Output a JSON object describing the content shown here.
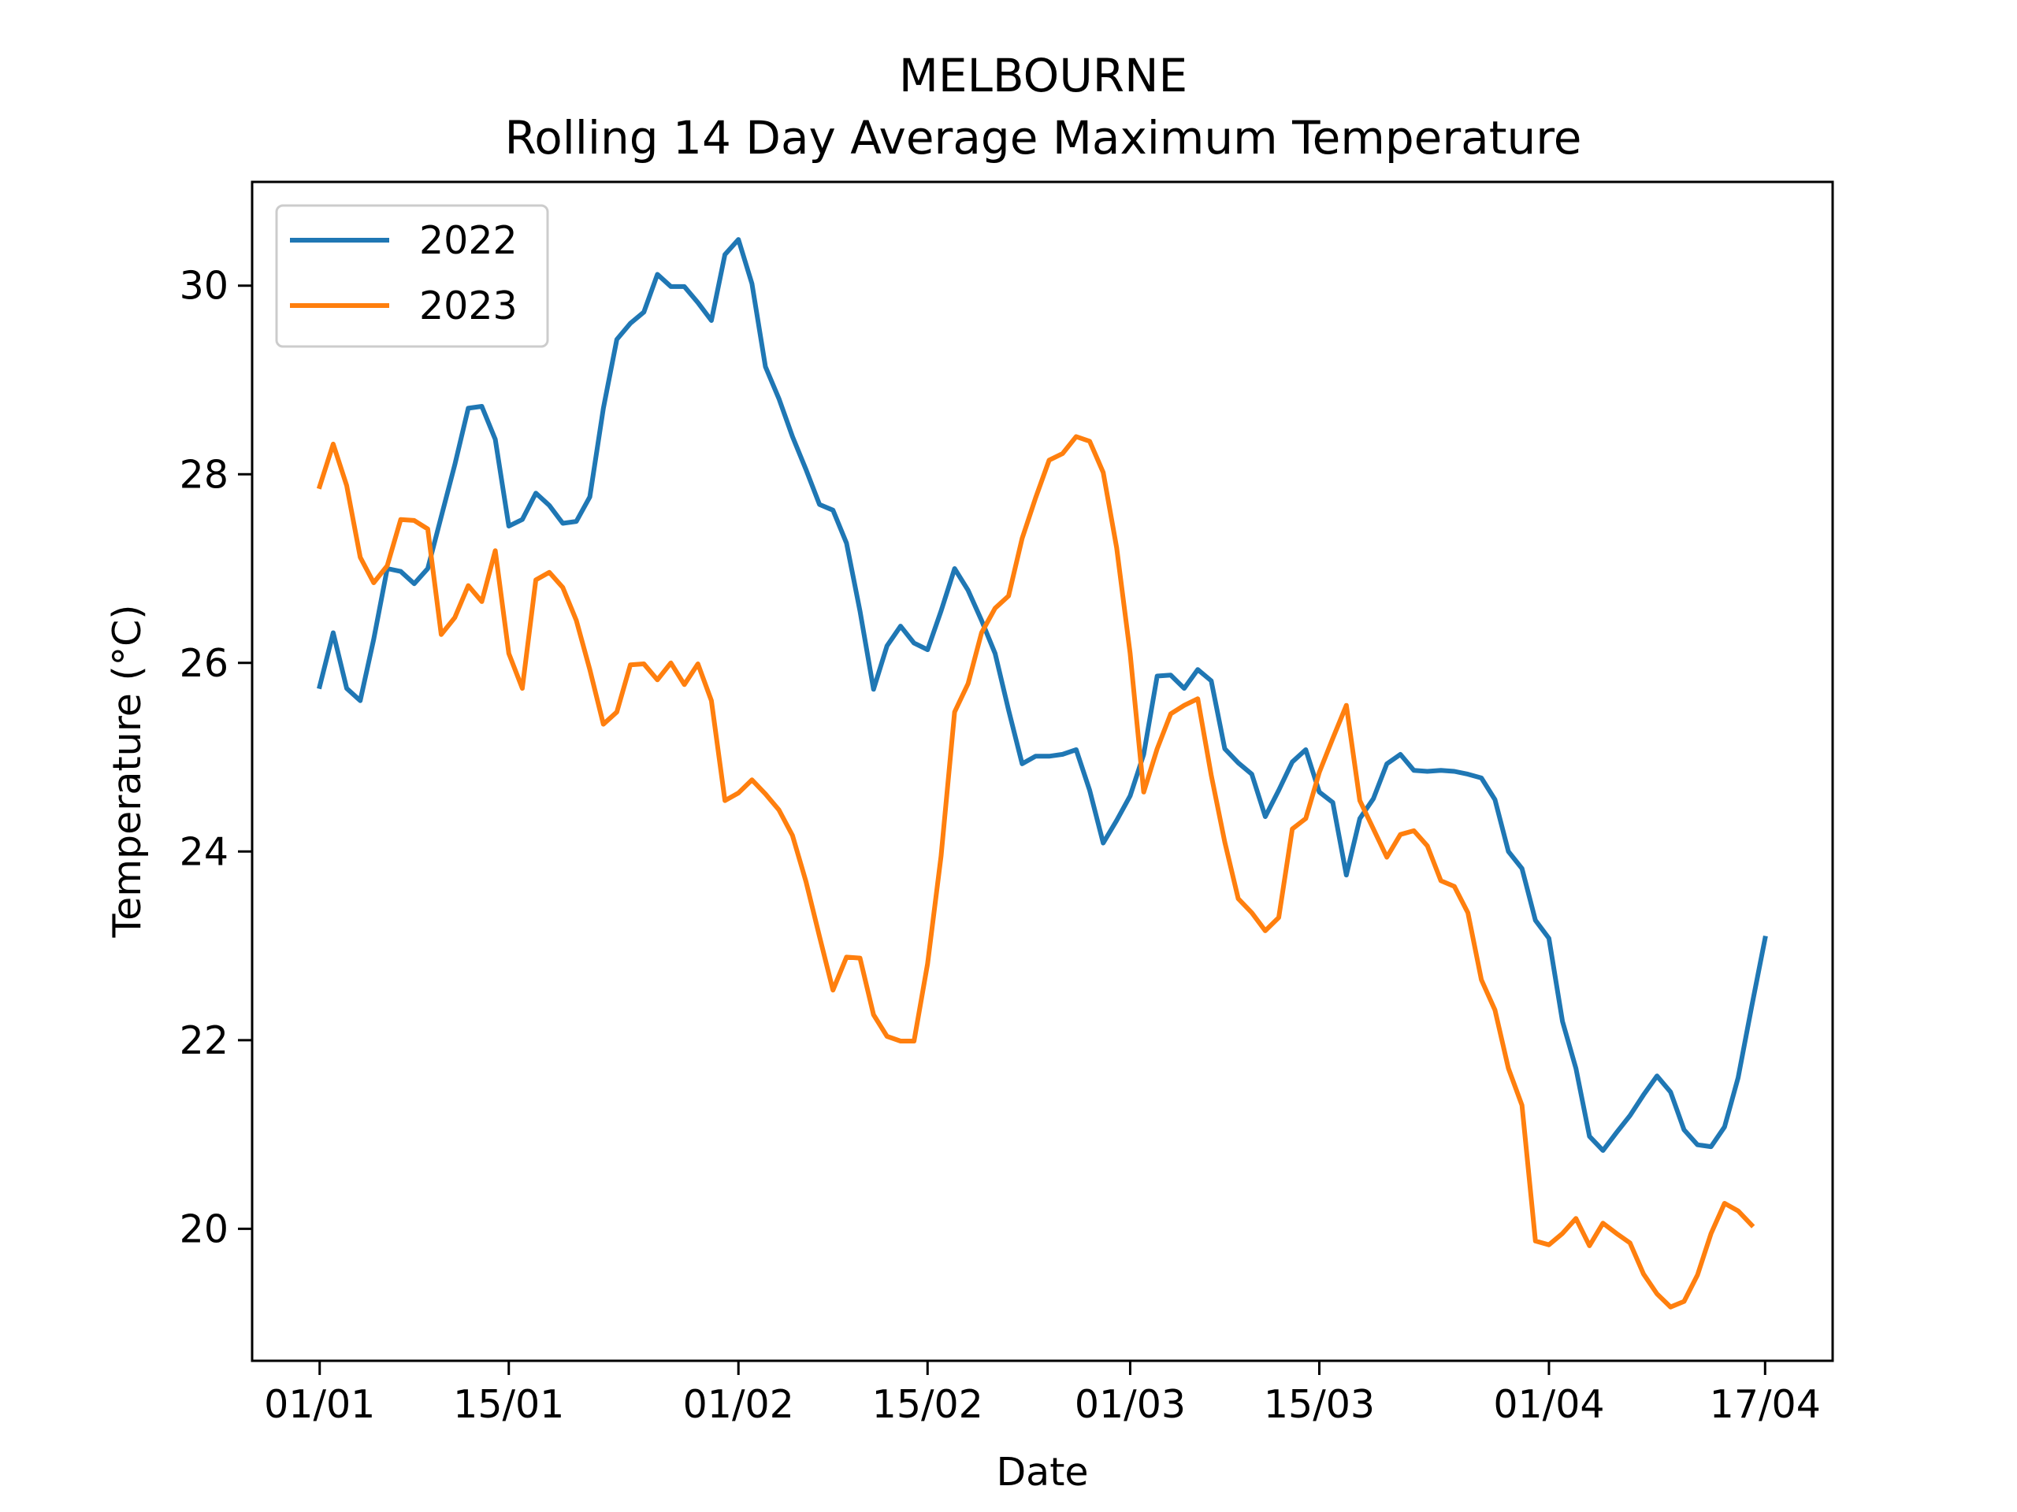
{
  "chart_data": {
    "type": "line",
    "title": "MELBOURNE",
    "subtitle": "Rolling 14 Day Average Maximum Temperature",
    "xlabel": "Date",
    "ylabel": "Temperature (°C)",
    "xlim": [
      "2023-12-27",
      "2024-04-22"
    ],
    "ylim": [
      18.6,
      31.1
    ],
    "x_ticks": [
      {
        "date": "2024-01-01",
        "label": "01/01"
      },
      {
        "date": "2024-01-15",
        "label": "15/01"
      },
      {
        "date": "2024-02-01",
        "label": "01/02"
      },
      {
        "date": "2024-02-15",
        "label": "15/02"
      },
      {
        "date": "2024-03-01",
        "label": "01/03"
      },
      {
        "date": "2024-03-15",
        "label": "15/03"
      },
      {
        "date": "2024-04-01",
        "label": "01/04"
      },
      {
        "date": "2024-04-17",
        "label": "17/04"
      }
    ],
    "y_ticks": [
      20,
      22,
      24,
      26,
      28,
      30
    ],
    "grid": false,
    "legend_position": "top-left",
    "x_start": "2024-01-01",
    "x_step_days": 1,
    "series": [
      {
        "name": "2022",
        "color": "#1f77b4",
        "values": [
          25.75,
          26.32,
          25.73,
          25.6,
          26.25,
          27.0,
          26.97,
          26.84,
          27.0,
          27.55,
          28.1,
          28.7,
          28.72,
          28.37,
          27.45,
          27.52,
          27.8,
          27.67,
          27.48,
          27.5,
          27.76,
          28.7,
          29.43,
          29.6,
          29.72,
          30.12,
          29.99,
          29.99,
          29.82,
          29.63,
          30.33,
          30.49,
          30.02,
          29.14,
          28.8,
          28.4,
          28.05,
          27.68,
          27.62,
          27.27,
          26.55,
          25.72,
          26.18,
          26.39,
          26.21,
          26.14,
          26.55,
          27.0,
          26.77,
          26.45,
          26.1,
          25.5,
          24.93,
          25.01,
          25.01,
          25.03,
          25.08,
          24.65,
          24.09,
          24.33,
          24.59,
          25.03,
          25.86,
          25.87,
          25.73,
          25.93,
          25.81,
          25.09,
          24.94,
          24.82,
          24.37,
          24.65,
          24.95,
          25.08,
          24.63,
          24.52,
          23.75,
          24.35,
          24.56,
          24.93,
          25.03,
          24.86,
          24.85,
          24.86,
          24.85,
          24.82,
          24.78,
          24.55,
          24.0,
          23.82,
          23.27,
          23.08,
          22.2,
          21.7,
          20.98,
          20.83,
          21.02,
          21.2,
          21.42,
          21.62,
          21.45,
          21.05,
          20.89,
          20.87,
          21.08,
          21.6,
          22.35,
          23.08
        ]
      },
      {
        "name": "2023",
        "color": "#ff7f0e",
        "values": [
          27.87,
          28.32,
          27.88,
          27.12,
          26.85,
          27.03,
          27.52,
          27.51,
          27.42,
          26.3,
          26.48,
          26.82,
          26.65,
          27.19,
          26.1,
          25.73,
          26.88,
          26.96,
          26.8,
          26.45,
          25.93,
          25.35,
          25.48,
          25.98,
          25.99,
          25.82,
          26.0,
          25.77,
          25.99,
          25.6,
          24.54,
          24.62,
          24.76,
          24.61,
          24.44,
          24.17,
          23.68,
          23.1,
          22.53,
          22.88,
          22.87,
          22.27,
          22.04,
          21.99,
          21.99,
          22.81,
          23.95,
          25.48,
          25.78,
          26.32,
          26.58,
          26.71,
          27.32,
          27.75,
          28.15,
          28.22,
          28.4,
          28.35,
          28.02,
          27.22,
          26.1,
          24.63,
          25.09,
          25.46,
          25.55,
          25.62,
          24.81,
          24.1,
          23.5,
          23.35,
          23.16,
          23.3,
          24.24,
          24.35,
          24.84,
          25.2,
          25.55,
          24.54,
          24.24,
          23.94,
          24.18,
          24.22,
          24.06,
          23.69,
          23.63,
          23.35,
          22.64,
          22.32,
          21.7,
          21.31,
          19.87,
          19.83,
          19.95,
          20.11,
          19.82,
          20.06,
          19.95,
          19.85,
          19.52,
          19.31,
          19.17,
          19.23,
          19.51,
          19.95,
          20.27,
          20.19,
          20.04
        ]
      }
    ]
  }
}
